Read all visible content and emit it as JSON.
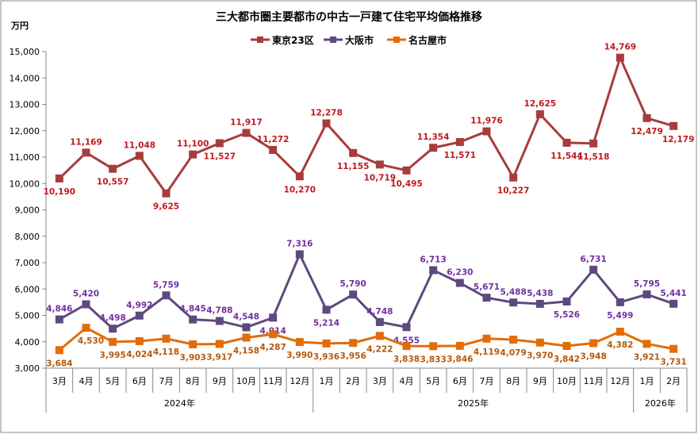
{
  "chart_data": {
    "type": "line",
    "title": "三大都市圏主要都市の中古一戸建て住宅平均価格推移",
    "ylabel": "万円",
    "ylim": [
      3000,
      15000
    ],
    "yticks": [
      "3,000",
      "4,000",
      "5,000",
      "6,000",
      "7,000",
      "8,000",
      "9,000",
      "10,000",
      "11,000",
      "12,000",
      "13,000",
      "14,000",
      "15,000"
    ],
    "grid": false,
    "legend_position": "top-center",
    "categories": [
      "3月",
      "4月",
      "5月",
      "6月",
      "7月",
      "8月",
      "9月",
      "10月",
      "11月",
      "12月",
      "1月",
      "2月",
      "3月",
      "4月",
      "5月",
      "6月",
      "7月",
      "8月",
      "9月",
      "10月",
      "11月",
      "12月",
      "1月",
      "2月"
    ],
    "years": [
      {
        "label": "2024年",
        "count": 10
      },
      {
        "label": "2025年",
        "count": 12
      },
      {
        "label": "2026年",
        "count": 2
      }
    ],
    "series": [
      {
        "name": "東京23区",
        "color": "#a83c3c",
        "label_color": "#c0181e",
        "values": [
          10190,
          11169,
          10557,
          11048,
          9625,
          11100,
          11527,
          11917,
          11272,
          10270,
          12278,
          11155,
          10719,
          10495,
          11354,
          11571,
          11976,
          10227,
          12625,
          11544,
          11518,
          14769,
          12479,
          12179
        ]
      },
      {
        "name": "大阪市",
        "color": "#5e497e",
        "label_color": "#7030a0",
        "values": [
          4846,
          5420,
          4498,
          4992,
          5759,
          4845,
          4788,
          4548,
          4914,
          7316,
          5214,
          5790,
          4748,
          4555,
          6713,
          6230,
          5671,
          5488,
          5438,
          5526,
          6731,
          5499,
          5795,
          5441
        ]
      },
      {
        "name": "名古屋市",
        "color": "#e36c0a",
        "label_color": "#b5590c",
        "values": [
          3684,
          4530,
          3995,
          4024,
          4118,
          3903,
          3917,
          4158,
          4287,
          3990,
          3936,
          3956,
          4222,
          3838,
          3833,
          3846,
          4119,
          4079,
          3970,
          3842,
          3948,
          4382,
          3921,
          3731
        ]
      }
    ]
  }
}
